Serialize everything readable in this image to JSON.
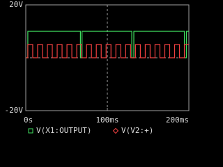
{
  "chart_data": {
    "type": "line",
    "xlim": [
      0,
      200
    ],
    "ylim": [
      -20,
      20
    ],
    "xticks": [
      {
        "value": 0,
        "label": "0s"
      },
      {
        "value": 100,
        "label": "100ms"
      },
      {
        "value": 200,
        "label": "200ms"
      }
    ],
    "yticks": [
      {
        "value": -20,
        "label": "-20V"
      },
      {
        "value": 0,
        "label": null
      },
      {
        "value": 20,
        "label": "20V"
      }
    ],
    "grid": true,
    "series": [
      {
        "name": "V(X1:OUTPUT)",
        "color": "#40e060",
        "marker": "square",
        "x": [
          0,
          2.5,
          2.5,
          67,
          67,
          69,
          69,
          130,
          130,
          132.5,
          132.5,
          194.5,
          194.5,
          197,
          197,
          200
        ],
        "values": [
          0,
          0,
          10,
          10,
          0,
          0,
          10,
          10,
          0,
          0,
          10,
          10,
          0,
          0,
          10,
          10
        ]
      },
      {
        "name": "V(V2:+)",
        "color": "#f04040",
        "marker": "diamond",
        "x": [
          0,
          2.5,
          2.5,
          8.5,
          8.5,
          14.5,
          14.5,
          20.5,
          20.5,
          26.5,
          26.5,
          32.5,
          32.5,
          38.5,
          38.5,
          44.5,
          44.5,
          50.5,
          50.5,
          56.5,
          56.5,
          62.5,
          62.5,
          68.5,
          68.5,
          74.5,
          74.5,
          80.5,
          80.5,
          86.5,
          86.5,
          92.5,
          92.5,
          98.5,
          98.5,
          104.5,
          104.5,
          110.5,
          110.5,
          116.5,
          116.5,
          122.5,
          122.5,
          128.5,
          128.5,
          134.5,
          134.5,
          140.5,
          140.5,
          146.5,
          146.5,
          152.5,
          152.5,
          158.5,
          158.5,
          164.5,
          164.5,
          170.5,
          170.5,
          176.5,
          176.5,
          182.5,
          182.5,
          188.5,
          188.5,
          194.5,
          194.5,
          200
        ],
        "values": [
          0,
          0,
          5,
          5,
          0,
          0,
          5,
          5,
          0,
          0,
          5,
          5,
          0,
          0,
          5,
          5,
          0,
          0,
          5,
          5,
          0,
          0,
          5,
          5,
          0,
          0,
          5,
          5,
          0,
          0,
          5,
          5,
          0,
          0,
          5,
          5,
          0,
          0,
          5,
          5,
          0,
          0,
          5,
          5,
          0,
          0,
          5,
          5,
          0,
          0,
          5,
          5,
          0,
          0,
          5,
          5,
          0,
          0,
          5,
          5,
          0,
          0,
          5,
          5,
          0,
          0,
          5,
          5
        ]
      }
    ]
  }
}
